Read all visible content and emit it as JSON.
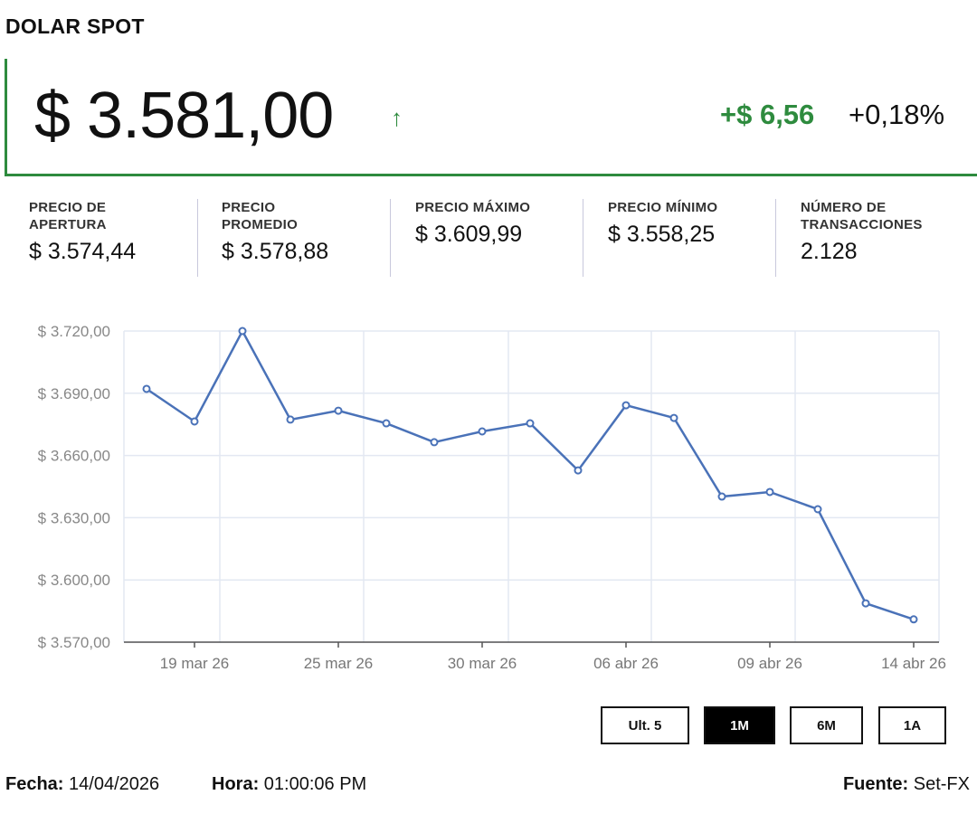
{
  "title": "DOLAR SPOT",
  "price": "$ 3.581,00",
  "change": "+$ 6,56",
  "change_pct": "+0,18%",
  "direction_icon": "arrow-up-icon",
  "colors": {
    "up": "#2e8b3e",
    "line": "#4a72b8",
    "grid": "#e3e8f2"
  },
  "stats": [
    {
      "label1": "PRECIO DE",
      "label2": "APERTURA",
      "value": "$ 3.574,44"
    },
    {
      "label1": "PRECIO",
      "label2": "PROMEDIO",
      "value": "$ 3.578,88"
    },
    {
      "label1": "PRECIO MÁXIMO",
      "label2": "",
      "value": "$ 3.609,99"
    },
    {
      "label1": "PRECIO MÍNIMO",
      "label2": "",
      "value": "$ 3.558,25"
    },
    {
      "label1": "NÚMERO DE",
      "label2": "TRANSACCIONES",
      "value": "2.128"
    }
  ],
  "ranges": [
    "Ult. 5",
    "1M",
    "6M",
    "1A"
  ],
  "active_range": "1M",
  "footer": {
    "fecha_label": "Fecha:",
    "fecha": "14/04/2026",
    "hora_label": "Hora:",
    "hora": "01:00:06 PM",
    "fuente_label": "Fuente:",
    "fuente": "Set-FX"
  },
  "chart_data": {
    "type": "line",
    "title": "",
    "xlabel": "",
    "ylabel": "",
    "ylim": [
      3570,
      3720
    ],
    "yticks": [
      3720,
      3690,
      3660,
      3630,
      3600,
      3570
    ],
    "ytick_labels": [
      "$ 3.720,00",
      "$ 3.690,00",
      "$ 3.660,00",
      "$ 3.630,00",
      "$ 3.600,00",
      "$ 3.570,00"
    ],
    "xtick_labels": [
      {
        "index": 1,
        "label": "19 mar 26"
      },
      {
        "index": 4,
        "label": "25 mar 26"
      },
      {
        "index": 7,
        "label": "30 mar 26"
      },
      {
        "index": 10,
        "label": "06 abr 26"
      },
      {
        "index": 13,
        "label": "09 abr 26"
      },
      {
        "index": 16,
        "label": "14 abr 26"
      }
    ],
    "values": [
      3692.1,
      3676.4,
      3720.0,
      3677.3,
      3681.6,
      3675.5,
      3666.4,
      3671.6,
      3675.5,
      3652.8,
      3684.2,
      3678.1,
      3640.2,
      3642.4,
      3634.1,
      3588.7,
      3581.0
    ],
    "grid": true,
    "legend": "none"
  }
}
